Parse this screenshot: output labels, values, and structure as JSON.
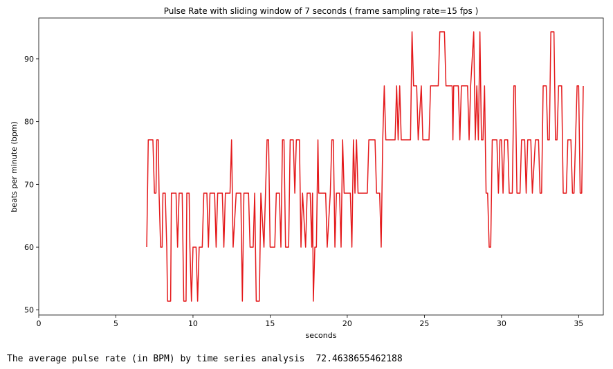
{
  "chart_data": {
    "type": "line",
    "title": "Pulse Rate with sliding window of 7 seconds  ( frame sampling rate=15 fps )",
    "x_label": "seconds",
    "y_label": "beats per minute (bpm)",
    "color": "#e41a1c",
    "xlim": [
      0,
      36.6
    ],
    "ylim": [
      49.2,
      96.5
    ],
    "xticks": [
      0,
      5,
      10,
      15,
      20,
      25,
      30,
      35
    ],
    "yticks": [
      50,
      60,
      70,
      80,
      90
    ],
    "x": [
      7.0,
      7.1,
      7.4,
      7.5,
      7.6,
      7.65,
      7.75,
      7.8,
      7.9,
      8.0,
      8.05,
      8.2,
      8.3,
      8.35,
      8.55,
      8.6,
      8.9,
      9.0,
      9.1,
      9.3,
      9.4,
      9.55,
      9.6,
      9.75,
      9.8,
      9.9,
      10.0,
      10.2,
      10.3,
      10.4,
      10.6,
      10.7,
      10.9,
      11.0,
      11.1,
      11.4,
      11.5,
      11.6,
      11.9,
      12.0,
      12.1,
      12.4,
      12.5,
      12.6,
      12.8,
      13.1,
      13.2,
      13.3,
      13.6,
      13.7,
      13.9,
      14.0,
      14.1,
      14.3,
      14.4,
      14.6,
      14.8,
      14.9,
      15.0,
      15.3,
      15.4,
      15.6,
      15.7,
      15.8,
      15.9,
      16.0,
      16.2,
      16.3,
      16.5,
      16.6,
      16.7,
      16.9,
      17.0,
      17.1,
      17.3,
      17.4,
      17.6,
      17.7,
      17.75,
      17.8,
      17.9,
      18.0,
      18.1,
      18.15,
      18.6,
      18.7,
      18.9,
      19.0,
      19.1,
      19.2,
      19.3,
      19.5,
      19.6,
      19.7,
      19.8,
      20.2,
      20.3,
      20.4,
      20.5,
      20.6,
      20.7,
      21.3,
      21.4,
      21.8,
      21.9,
      22.1,
      22.2,
      22.3,
      22.4,
      22.5,
      23.1,
      23.2,
      23.3,
      23.4,
      23.5,
      24.1,
      24.2,
      24.3,
      24.5,
      24.6,
      24.8,
      24.9,
      25.3,
      25.4,
      25.9,
      26.0,
      26.3,
      26.4,
      26.8,
      26.85,
      26.9,
      27.2,
      27.3,
      27.4,
      27.8,
      27.9,
      28.0,
      28.2,
      28.3,
      28.4,
      28.5,
      28.6,
      28.7,
      28.8,
      28.9,
      29.0,
      29.1,
      29.2,
      29.3,
      29.4,
      29.7,
      29.8,
      29.9,
      30.0,
      30.1,
      30.2,
      30.4,
      30.5,
      30.7,
      30.8,
      30.9,
      31.0,
      31.2,
      31.3,
      31.5,
      31.6,
      31.7,
      31.9,
      32.0,
      32.2,
      32.4,
      32.5,
      32.6,
      32.7,
      32.9,
      33.0,
      33.1,
      33.2,
      33.4,
      33.5,
      33.6,
      33.7,
      33.9,
      34.0,
      34.2,
      34.3,
      34.5,
      34.6,
      34.7,
      34.8,
      34.9,
      35.0,
      35.1,
      35.2,
      35.3
    ],
    "values": [
      60,
      77.1,
      77.1,
      68.6,
      68.6,
      77.1,
      77.1,
      68.6,
      60,
      60,
      68.6,
      68.6,
      60,
      51.4,
      51.4,
      68.6,
      68.6,
      60,
      68.6,
      68.6,
      51.4,
      51.4,
      68.6,
      68.6,
      60,
      51.4,
      60,
      60,
      51.4,
      60,
      60,
      68.6,
      68.6,
      60,
      68.6,
      68.6,
      60,
      68.6,
      68.6,
      60,
      68.6,
      68.6,
      77.1,
      60,
      68.6,
      68.6,
      51.4,
      68.6,
      68.6,
      60,
      60,
      68.6,
      51.4,
      51.4,
      68.6,
      60,
      77.1,
      77.1,
      60,
      60,
      68.6,
      68.6,
      60,
      77.1,
      77.1,
      60,
      60,
      77.1,
      77.1,
      68.6,
      77.1,
      77.1,
      60,
      68.6,
      60,
      68.6,
      68.6,
      60,
      68.6,
      51.4,
      60,
      60,
      77.1,
      68.6,
      68.6,
      60,
      68.6,
      77.1,
      77.1,
      60,
      68.6,
      68.6,
      60,
      77.1,
      68.6,
      68.6,
      60,
      77.1,
      68.6,
      77.1,
      68.6,
      68.6,
      77.1,
      77.1,
      68.6,
      68.6,
      60,
      77.1,
      85.7,
      77.1,
      77.1,
      85.7,
      77.1,
      85.7,
      77.1,
      77.1,
      94.3,
      85.7,
      85.7,
      77.1,
      85.7,
      77.1,
      77.1,
      85.7,
      85.7,
      94.3,
      94.3,
      85.7,
      85.7,
      77.1,
      85.7,
      85.7,
      77.1,
      85.7,
      85.7,
      77.1,
      85.7,
      94.3,
      77.1,
      85.7,
      77.1,
      94.3,
      77.1,
      77.1,
      85.7,
      68.6,
      68.6,
      60,
      60,
      77.1,
      77.1,
      68.6,
      77.1,
      77.1,
      68.6,
      77.1,
      77.1,
      68.6,
      68.6,
      85.7,
      85.7,
      68.6,
      68.6,
      77.1,
      77.1,
      68.6,
      77.1,
      77.1,
      68.6,
      77.1,
      77.1,
      68.6,
      68.6,
      85.7,
      85.7,
      77.1,
      77.1,
      94.3,
      94.3,
      77.1,
      77.1,
      85.7,
      85.7,
      68.6,
      68.6,
      77.1,
      77.1,
      68.6,
      68.6,
      77.1,
      85.7,
      85.7,
      68.6,
      68.6,
      85.7
    ]
  },
  "output": {
    "label": "The average pulse rate (in BPM) by time series analysis",
    "value": 72.4638655462188
  }
}
